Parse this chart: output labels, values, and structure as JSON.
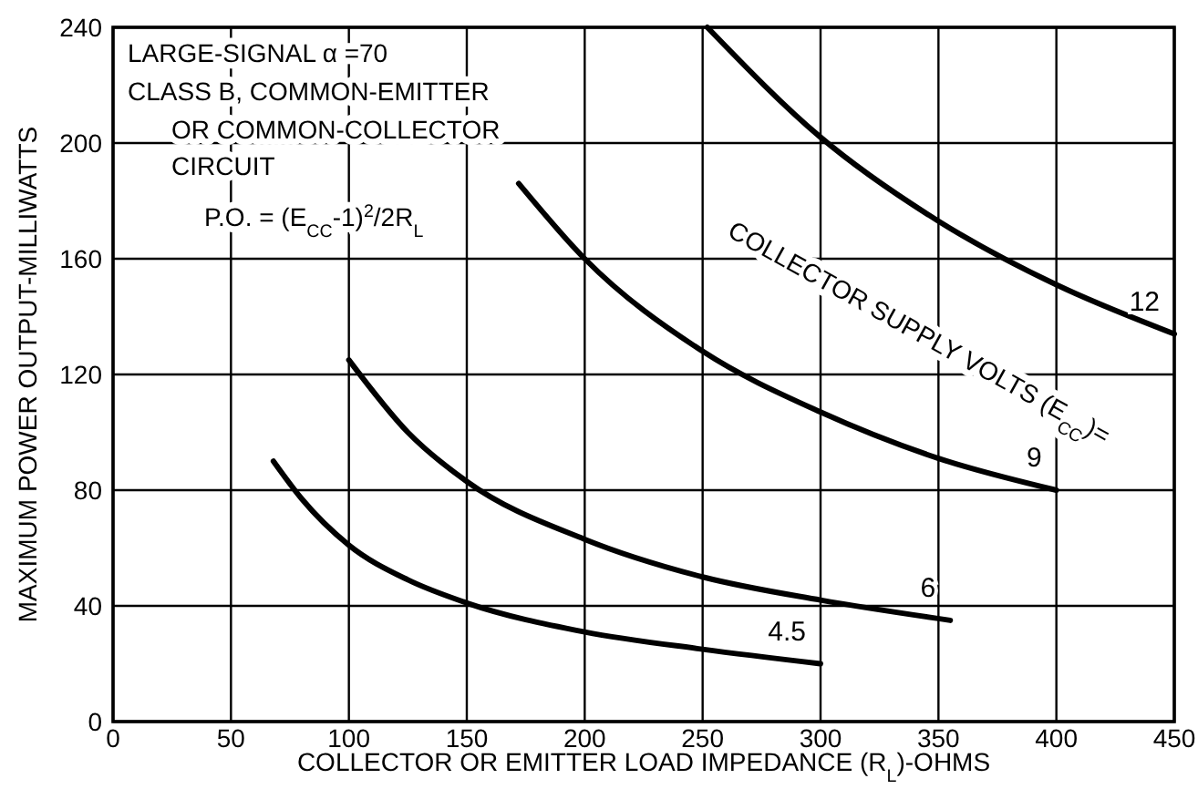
{
  "chart_data": {
    "type": "line",
    "xlabel": "COLLECTOR OR EMITTER LOAD IMPEDANCE (R$_{L}$)-OHMS",
    "ylabel": "MAXIMUM POWER OUTPUT-MILLIWATTS",
    "annotations": [
      "LARGE-SIGNAL α =70",
      "CLASS B, COMMON-EMITTER",
      "OR COMMON-COLLECTOR",
      "CIRCUIT",
      "P.O. = (E$_{CC}$-1)$^{2}$/2R$_{L}$",
      "COLLECTOR SUPPLY VOLTS (E$_{CC}$)="
    ],
    "series": [
      {
        "name": "4.5",
        "color": "#000000",
        "x": [
          68,
          80,
          100,
          125,
          150,
          200,
          250,
          300
        ],
        "values": [
          90,
          77,
          61,
          49,
          41,
          31,
          25,
          20
        ]
      },
      {
        "name": "6",
        "color": "#000000",
        "x": [
          100,
          125,
          150,
          200,
          250,
          300,
          355
        ],
        "values": [
          125,
          100,
          83,
          63,
          50,
          42,
          35
        ]
      },
      {
        "name": "9",
        "color": "#000000",
        "x": [
          172,
          200,
          250,
          300,
          350,
          400
        ],
        "values": [
          186,
          160,
          128,
          107,
          91,
          80
        ]
      },
      {
        "name": "12",
        "color": "#000000",
        "x": [
          252,
          300,
          350,
          400,
          450
        ],
        "values": [
          240,
          202,
          173,
          151,
          134
        ]
      }
    ],
    "xlim": [
      0,
      450
    ],
    "ylim": [
      0,
      240
    ],
    "xticks": [
      0,
      50,
      100,
      150,
      200,
      250,
      300,
      350,
      400,
      450
    ],
    "yticks": [
      0,
      40,
      80,
      120,
      160,
      200,
      240
    ],
    "grid": true,
    "marker": "none",
    "line_style": "solid"
  }
}
